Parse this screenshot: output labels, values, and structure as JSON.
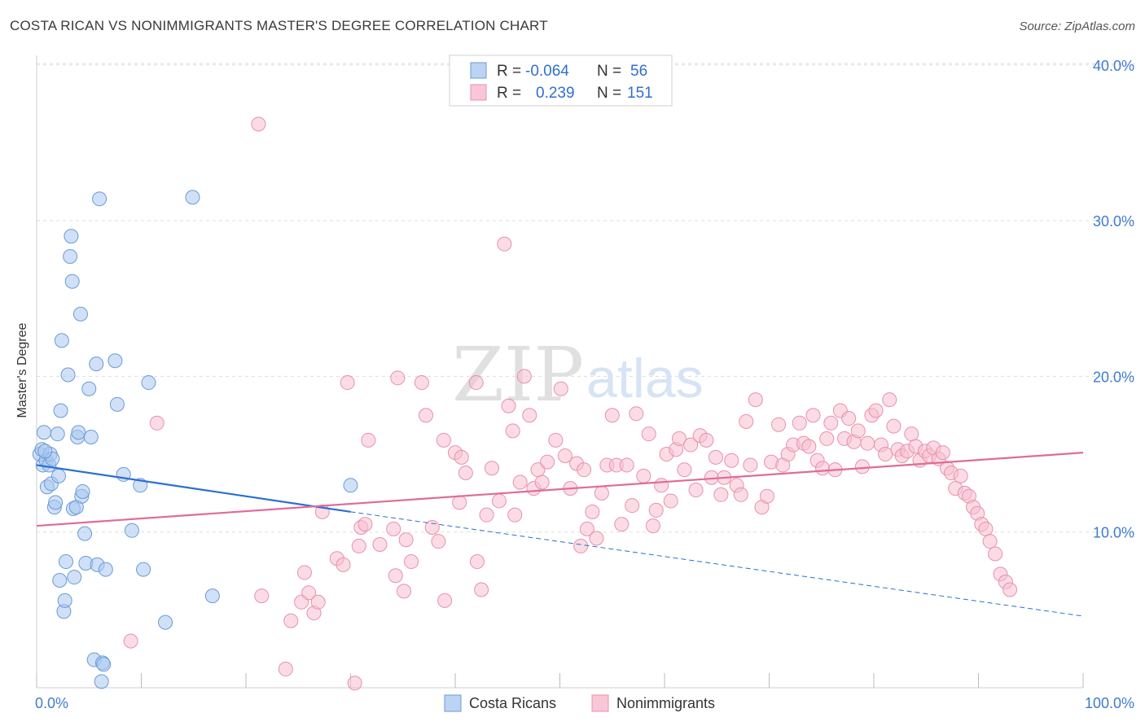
{
  "title": "COSTA RICAN VS NONIMMIGRANTS MASTER'S DEGREE CORRELATION CHART",
  "source": "Source: ZipAtlas.com",
  "watermark": {
    "zip": "ZIP",
    "atlas": "atlas"
  },
  "colors": {
    "blue_fill": "#a9c8f0",
    "blue_stroke": "#6a9ad8",
    "blue_line": "#2a6fd0",
    "pink_fill": "#f8c0d0",
    "pink_stroke": "#e890ae",
    "pink_line": "#e06b98",
    "grid": "#dddddd",
    "axis_text": "#3f7bd0"
  },
  "legend_top": [
    {
      "r_label": "R =",
      "r_value": "-0.064",
      "n_label": "N =",
      "n_value": "56",
      "series": "Costa Ricans"
    },
    {
      "r_label": "R =",
      "r_value": "0.239",
      "n_label": "N =",
      "n_value": "151",
      "series": "Nonimmigrants"
    }
  ],
  "legend_bottom": [
    "Costa Ricans",
    "Nonimmigrants"
  ],
  "chart_data": {
    "type": "scatter",
    "title": "COSTA RICAN VS NONIMMIGRANTS MASTER'S DEGREE CORRELATION CHART",
    "xlabel": "",
    "ylabel": "Master's Degree",
    "xlim": [
      0,
      100
    ],
    "ylim": [
      0,
      40
    ],
    "x_tick_labels": [
      "0.0%",
      "100.0%"
    ],
    "y_ticks": [
      10,
      20,
      30,
      40
    ],
    "y_tick_labels": [
      "10.0%",
      "20.0%",
      "30.0%",
      "40.0%"
    ],
    "grid": true,
    "legend_position": "top-center",
    "series": [
      {
        "name": "Costa Ricans",
        "points": [
          [
            0.3,
            15.0
          ],
          [
            0.5,
            15.3
          ],
          [
            0.6,
            14.3
          ],
          [
            0.7,
            16.4
          ],
          [
            0.9,
            14.6
          ],
          [
            1.0,
            12.9
          ],
          [
            1.2,
            14.3
          ],
          [
            1.3,
            15.0
          ],
          [
            1.4,
            13.1
          ],
          [
            1.5,
            14.7
          ],
          [
            1.7,
            11.6
          ],
          [
            1.8,
            11.9
          ],
          [
            2.0,
            16.3
          ],
          [
            2.1,
            13.6
          ],
          [
            2.2,
            6.9
          ],
          [
            2.3,
            17.8
          ],
          [
            2.4,
            22.3
          ],
          [
            2.6,
            4.9
          ],
          [
            2.7,
            5.6
          ],
          [
            2.8,
            8.1
          ],
          [
            3.0,
            20.1
          ],
          [
            3.2,
            27.7
          ],
          [
            3.3,
            29.0
          ],
          [
            3.4,
            26.1
          ],
          [
            3.5,
            11.5
          ],
          [
            3.6,
            7.1
          ],
          [
            3.8,
            11.6
          ],
          [
            3.9,
            16.1
          ],
          [
            4.0,
            16.4
          ],
          [
            4.2,
            24.0
          ],
          [
            4.3,
            12.3
          ],
          [
            4.4,
            12.6
          ],
          [
            4.6,
            9.9
          ],
          [
            4.7,
            8.0
          ],
          [
            5.0,
            19.2
          ],
          [
            5.2,
            16.1
          ],
          [
            5.5,
            1.8
          ],
          [
            5.7,
            20.8
          ],
          [
            5.8,
            7.9
          ],
          [
            6.0,
            31.4
          ],
          [
            6.2,
            0.4
          ],
          [
            6.3,
            1.6
          ],
          [
            6.4,
            1.5
          ],
          [
            6.6,
            7.6
          ],
          [
            7.5,
            21.0
          ],
          [
            7.7,
            18.2
          ],
          [
            8.3,
            13.7
          ],
          [
            9.1,
            10.1
          ],
          [
            9.9,
            13.0
          ],
          [
            10.2,
            7.6
          ],
          [
            10.7,
            19.6
          ],
          [
            12.3,
            4.2
          ],
          [
            14.9,
            31.5
          ],
          [
            16.8,
            5.9
          ],
          [
            30.0,
            13.0
          ],
          [
            0.8,
            15.2
          ]
        ],
        "trend": {
          "x": [
            0,
            30,
            100
          ],
          "y": [
            14.3,
            11.3,
            4.6
          ],
          "solid_until": 30
        }
      },
      {
        "name": "Nonimmigrants",
        "points": [
          [
            11.5,
            17.0
          ],
          [
            9.0,
            3.0
          ],
          [
            21.2,
            36.2
          ],
          [
            21.5,
            5.9
          ],
          [
            23.8,
            1.2
          ],
          [
            24.3,
            4.3
          ],
          [
            25.3,
            5.5
          ],
          [
            25.6,
            7.4
          ],
          [
            26.0,
            6.1
          ],
          [
            26.5,
            4.8
          ],
          [
            26.9,
            5.5
          ],
          [
            27.3,
            11.3
          ],
          [
            28.7,
            8.3
          ],
          [
            29.3,
            7.9
          ],
          [
            29.7,
            19.6
          ],
          [
            30.4,
            0.3
          ],
          [
            30.8,
            9.1
          ],
          [
            31.0,
            10.3
          ],
          [
            31.4,
            10.5
          ],
          [
            31.7,
            15.9
          ],
          [
            32.8,
            9.2
          ],
          [
            34.1,
            10.2
          ],
          [
            34.3,
            7.2
          ],
          [
            34.5,
            19.9
          ],
          [
            35.1,
            6.2
          ],
          [
            35.3,
            9.5
          ],
          [
            35.8,
            8.1
          ],
          [
            36.8,
            19.6
          ],
          [
            37.2,
            17.5
          ],
          [
            37.8,
            10.3
          ],
          [
            38.4,
            9.4
          ],
          [
            38.9,
            15.9
          ],
          [
            39.0,
            5.6
          ],
          [
            40.0,
            15.1
          ],
          [
            40.4,
            11.9
          ],
          [
            40.6,
            14.8
          ],
          [
            41.0,
            13.8
          ],
          [
            42.0,
            19.6
          ],
          [
            42.1,
            8.1
          ],
          [
            42.5,
            6.3
          ],
          [
            43.0,
            11.1
          ],
          [
            43.5,
            14.1
          ],
          [
            44.2,
            12.0
          ],
          [
            44.7,
            28.5
          ],
          [
            45.1,
            18.1
          ],
          [
            45.5,
            16.5
          ],
          [
            45.7,
            11.1
          ],
          [
            46.2,
            13.2
          ],
          [
            46.6,
            20.0
          ],
          [
            47.1,
            17.5
          ],
          [
            47.5,
            12.8
          ],
          [
            47.9,
            14.0
          ],
          [
            48.3,
            13.2
          ],
          [
            48.8,
            14.5
          ],
          [
            49.6,
            15.9
          ],
          [
            50.1,
            19.2
          ],
          [
            50.5,
            14.9
          ],
          [
            51.0,
            12.8
          ],
          [
            51.6,
            14.4
          ],
          [
            52.0,
            9.1
          ],
          [
            52.3,
            14.0
          ],
          [
            52.6,
            10.2
          ],
          [
            53.1,
            11.3
          ],
          [
            53.5,
            9.6
          ],
          [
            54.0,
            12.5
          ],
          [
            54.5,
            14.3
          ],
          [
            55.0,
            17.5
          ],
          [
            55.4,
            14.3
          ],
          [
            55.9,
            10.5
          ],
          [
            56.4,
            14.3
          ],
          [
            56.9,
            11.7
          ],
          [
            57.3,
            17.6
          ],
          [
            58.0,
            13.6
          ],
          [
            58.5,
            16.3
          ],
          [
            58.9,
            10.4
          ],
          [
            59.2,
            11.4
          ],
          [
            59.7,
            13.0
          ],
          [
            60.2,
            15.0
          ],
          [
            60.6,
            12.0
          ],
          [
            61.1,
            15.3
          ],
          [
            61.4,
            16.0
          ],
          [
            61.9,
            14.0
          ],
          [
            62.5,
            15.6
          ],
          [
            63.0,
            12.7
          ],
          [
            63.4,
            16.2
          ],
          [
            64.0,
            15.9
          ],
          [
            64.5,
            13.5
          ],
          [
            64.9,
            14.8
          ],
          [
            65.4,
            12.4
          ],
          [
            65.7,
            13.5
          ],
          [
            66.4,
            14.6
          ],
          [
            66.9,
            13.0
          ],
          [
            67.3,
            12.4
          ],
          [
            67.8,
            17.1
          ],
          [
            68.2,
            14.3
          ],
          [
            68.7,
            18.5
          ],
          [
            69.3,
            11.6
          ],
          [
            69.8,
            12.3
          ],
          [
            70.2,
            14.5
          ],
          [
            70.9,
            16.9
          ],
          [
            71.3,
            14.3
          ],
          [
            71.8,
            15.0
          ],
          [
            72.3,
            15.6
          ],
          [
            72.9,
            17.0
          ],
          [
            73.3,
            15.7
          ],
          [
            73.8,
            15.5
          ],
          [
            74.2,
            17.5
          ],
          [
            74.6,
            14.6
          ],
          [
            75.1,
            14.1
          ],
          [
            75.5,
            16.0
          ],
          [
            75.9,
            17.0
          ],
          [
            76.3,
            14.0
          ],
          [
            76.8,
            17.8
          ],
          [
            77.2,
            16.0
          ],
          [
            77.6,
            17.3
          ],
          [
            78.1,
            15.8
          ],
          [
            78.5,
            16.5
          ],
          [
            78.9,
            14.2
          ],
          [
            79.4,
            15.7
          ],
          [
            79.8,
            17.5
          ],
          [
            80.2,
            17.8
          ],
          [
            80.7,
            15.6
          ],
          [
            81.1,
            15.0
          ],
          [
            81.5,
            18.5
          ],
          [
            81.9,
            16.8
          ],
          [
            82.3,
            15.3
          ],
          [
            82.7,
            14.9
          ],
          [
            83.2,
            15.2
          ],
          [
            83.6,
            16.3
          ],
          [
            84.0,
            15.5
          ],
          [
            84.4,
            14.6
          ],
          [
            84.9,
            15.2
          ],
          [
            85.3,
            14.9
          ],
          [
            85.7,
            15.4
          ],
          [
            86.2,
            14.7
          ],
          [
            86.6,
            15.1
          ],
          [
            87.0,
            14.1
          ],
          [
            87.4,
            13.8
          ],
          [
            87.8,
            12.8
          ],
          [
            88.3,
            13.6
          ],
          [
            88.7,
            12.5
          ],
          [
            89.1,
            12.3
          ],
          [
            89.5,
            11.6
          ],
          [
            89.9,
            11.2
          ],
          [
            90.3,
            10.5
          ],
          [
            90.7,
            10.2
          ],
          [
            91.1,
            9.4
          ],
          [
            91.6,
            8.6
          ],
          [
            92.1,
            7.3
          ],
          [
            92.6,
            6.8
          ],
          [
            93.0,
            6.3
          ]
        ],
        "trend": {
          "x": [
            0,
            100
          ],
          "y": [
            10.4,
            15.1
          ]
        }
      }
    ]
  }
}
